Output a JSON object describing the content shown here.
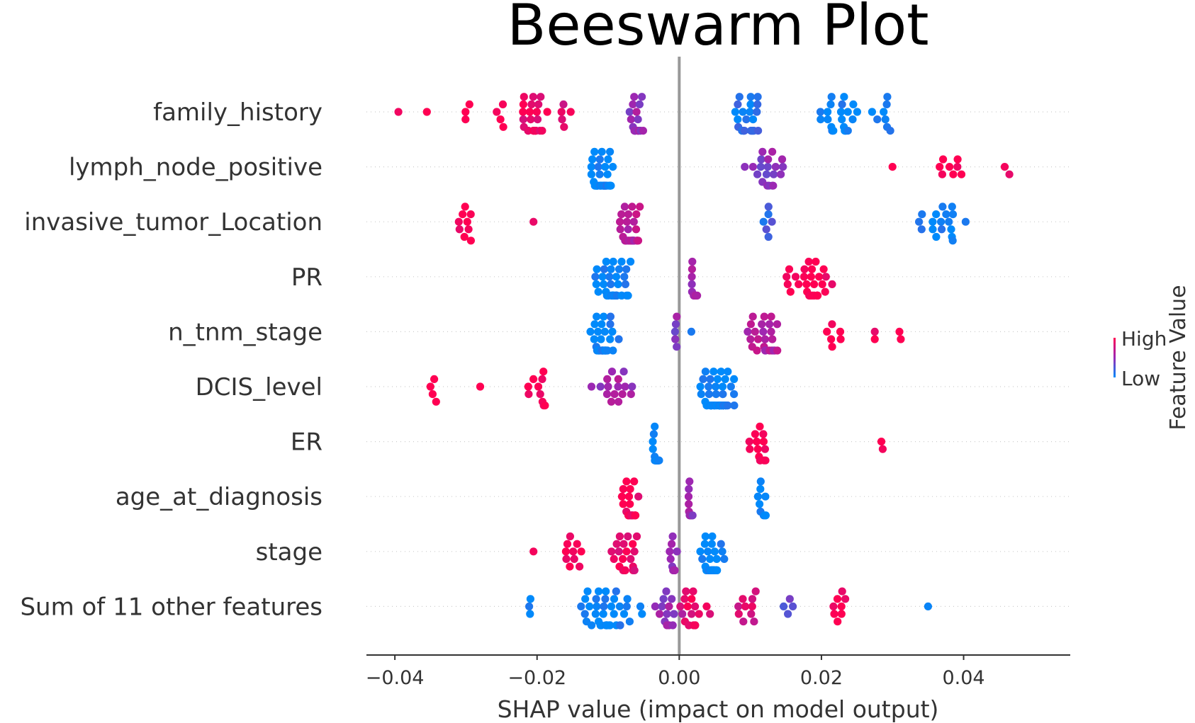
{
  "chart_data": {
    "type": "scatter",
    "subtype": "beeswarm",
    "title": "Beeswarm Plot",
    "xlabel": "SHAP value (impact on model output)",
    "xlim": [
      -0.044,
      0.055
    ],
    "x_ticks": [
      -0.04,
      -0.02,
      0.0,
      0.02,
      0.04
    ],
    "x_tick_labels": [
      "−0.04",
      "−0.02",
      "0.00",
      "0.02",
      "0.04"
    ],
    "colorbar": {
      "label": "Feature Value",
      "high_label": "High",
      "low_label": "Low",
      "high_color": "#ff0052",
      "mid_color": "#9b28b4",
      "low_color": "#008afb"
    },
    "zero_line_color": "#999999",
    "features": [
      {
        "name": "family_history",
        "clusters": [
          {
            "center": -0.0395,
            "spread": 0.0,
            "n": 1,
            "v": 1.0
          },
          {
            "center": -0.0355,
            "spread": 0.0,
            "n": 1,
            "v": 1.0
          },
          {
            "center": -0.03,
            "spread": 0.0015,
            "n": 3,
            "v": 1.0
          },
          {
            "center": -0.0255,
            "spread": 0.0015,
            "n": 4,
            "v": 1.0
          },
          {
            "center": -0.0205,
            "spread": 0.0025,
            "n": 26,
            "v": 0.9
          },
          {
            "center": -0.0165,
            "spread": 0.0015,
            "n": 5,
            "v": 0.85
          },
          {
            "center": -0.006,
            "spread": 0.0012,
            "n": 22,
            "v": 0.5
          },
          {
            "center": 0.0095,
            "spread": 0.0025,
            "n": 26,
            "v": 0.1
          },
          {
            "center": 0.0225,
            "spread": 0.003,
            "n": 24,
            "v": 0.0
          },
          {
            "center": 0.0285,
            "spread": 0.002,
            "n": 8,
            "v": 0.0
          }
        ]
      },
      {
        "name": "lymph_node_positive",
        "clusters": [
          {
            "center": -0.011,
            "spread": 0.0025,
            "n": 42,
            "v": 0.0
          },
          {
            "center": 0.0125,
            "spread": 0.004,
            "n": 20,
            "v": 0.45
          },
          {
            "center": 0.03,
            "spread": 0.0,
            "n": 1,
            "v": 1.0
          },
          {
            "center": 0.0375,
            "spread": 0.004,
            "n": 8,
            "v": 1.0
          },
          {
            "center": 0.047,
            "spread": 0.002,
            "n": 2,
            "v": 1.0
          }
        ]
      },
      {
        "name": "invasive_tumor_Location",
        "clusters": [
          {
            "center": -0.0295,
            "spread": 0.0025,
            "n": 9,
            "v": 1.0
          },
          {
            "center": -0.0205,
            "spread": 0.0,
            "n": 1,
            "v": 1.0
          },
          {
            "center": -0.0068,
            "spread": 0.0018,
            "n": 36,
            "v": 0.65
          },
          {
            "center": 0.0125,
            "spread": 0.001,
            "n": 6,
            "v": 0.2
          },
          {
            "center": 0.037,
            "spread": 0.0055,
            "n": 18,
            "v": 0.0
          }
        ]
      },
      {
        "name": "PR",
        "clusters": [
          {
            "center": -0.0095,
            "spread": 0.0035,
            "n": 42,
            "v": 0.0
          },
          {
            "center": 0.002,
            "spread": 0.001,
            "n": 10,
            "v": 0.55
          },
          {
            "center": 0.0185,
            "spread": 0.005,
            "n": 30,
            "v": 1.0
          }
        ]
      },
      {
        "name": "n_tnm_stage",
        "clusters": [
          {
            "center": -0.0105,
            "spread": 0.0025,
            "n": 40,
            "v": 0.0
          },
          {
            "center": -0.0005,
            "spread": 0.0005,
            "n": 5,
            "v": 0.45
          },
          {
            "center": 0.0017,
            "spread": 0.0,
            "n": 1,
            "v": 0.2
          },
          {
            "center": 0.0115,
            "spread": 0.004,
            "n": 26,
            "v": 0.6
          },
          {
            "center": 0.0215,
            "spread": 0.003,
            "n": 6,
            "v": 1.0
          },
          {
            "center": 0.0275,
            "spread": 0.0,
            "n": 2,
            "v": 1.0
          },
          {
            "center": 0.031,
            "spread": 0.0005,
            "n": 2,
            "v": 1.0
          }
        ]
      },
      {
        "name": "DCIS_level",
        "clusters": [
          {
            "center": -0.0345,
            "spread": 0.0012,
            "n": 4,
            "v": 1.0
          },
          {
            "center": -0.028,
            "spread": 0.0,
            "n": 1,
            "v": 1.0
          },
          {
            "center": -0.02,
            "spread": 0.0035,
            "n": 10,
            "v": 1.0
          },
          {
            "center": -0.009,
            "spread": 0.004,
            "n": 16,
            "v": 0.55
          },
          {
            "center": 0.0055,
            "spread": 0.0035,
            "n": 60,
            "v": 0.0
          }
        ]
      },
      {
        "name": "ER",
        "clusters": [
          {
            "center": -0.0032,
            "spread": 0.0007,
            "n": 30,
            "v": 0.0
          },
          {
            "center": 0.0115,
            "spread": 0.0025,
            "n": 14,
            "v": 1.0
          },
          {
            "center": 0.0285,
            "spread": 0.0004,
            "n": 2,
            "v": 1.0
          }
        ]
      },
      {
        "name": "age_at_diagnosis",
        "clusters": [
          {
            "center": -0.007,
            "spread": 0.0018,
            "n": 24,
            "v": 0.95
          },
          {
            "center": 0.0015,
            "spread": 0.0006,
            "n": 14,
            "v": 0.5
          },
          {
            "center": 0.0115,
            "spread": 0.0012,
            "n": 10,
            "v": 0.0
          }
        ]
      },
      {
        "name": "stage",
        "clusters": [
          {
            "center": -0.0205,
            "spread": 0.0,
            "n": 1,
            "v": 1.0
          },
          {
            "center": -0.015,
            "spread": 0.0025,
            "n": 10,
            "v": 1.0
          },
          {
            "center": -0.007,
            "spread": 0.0035,
            "n": 20,
            "v": 0.9
          },
          {
            "center": -0.001,
            "spread": 0.001,
            "n": 10,
            "v": 0.5
          },
          {
            "center": 0.0045,
            "spread": 0.002,
            "n": 40,
            "v": 0.0
          }
        ]
      },
      {
        "name": "Sum of 11 other features",
        "clusters": [
          {
            "center": -0.021,
            "spread": 0.0005,
            "n": 3,
            "v": 0.0
          },
          {
            "center": -0.01,
            "spread": 0.006,
            "n": 40,
            "v": 0.0
          },
          {
            "center": -0.0015,
            "spread": 0.003,
            "n": 14,
            "v": 0.5
          },
          {
            "center": 0.002,
            "spread": 0.0035,
            "n": 16,
            "v": 0.9
          },
          {
            "center": 0.01,
            "spread": 0.0035,
            "n": 10,
            "v": 0.8
          },
          {
            "center": 0.015,
            "spread": 0.002,
            "n": 4,
            "v": 0.3
          },
          {
            "center": 0.0225,
            "spread": 0.002,
            "n": 8,
            "v": 1.0
          },
          {
            "center": 0.035,
            "spread": 0.0,
            "n": 1,
            "v": 0.0
          }
        ]
      }
    ]
  }
}
